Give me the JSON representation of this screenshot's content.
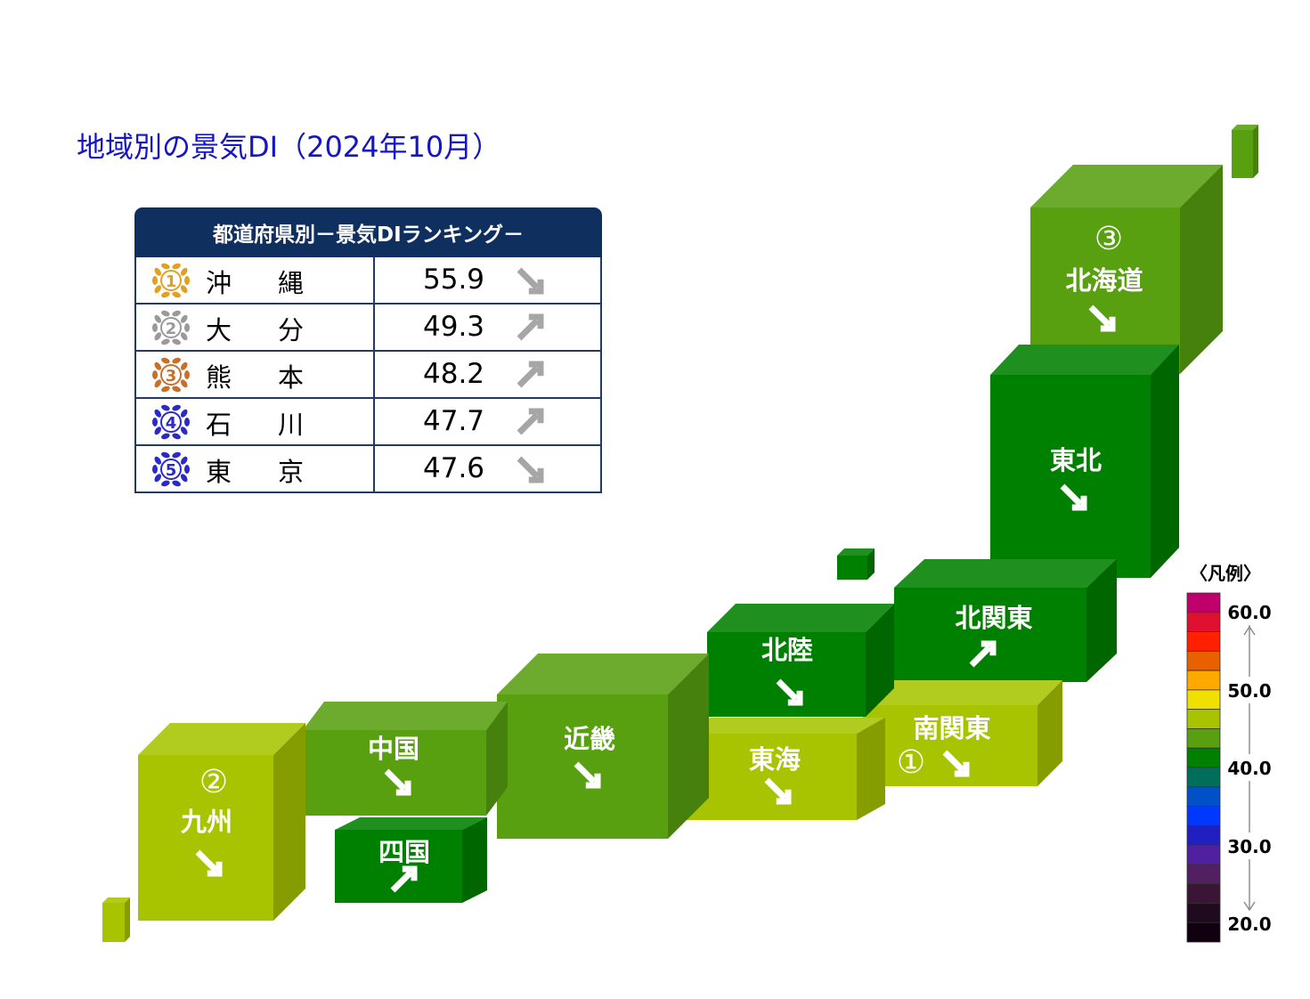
{
  "title": "地域別の景気DI（2024年10月）",
  "ranking": {
    "header": "都道府県別－景気DIランキング－",
    "rows": [
      {
        "rank": "1",
        "name": "沖縄",
        "value": "55.9",
        "trend": "down",
        "medal_color": "#e0a020"
      },
      {
        "rank": "2",
        "name": "大分",
        "value": "49.3",
        "trend": "up",
        "medal_color": "#9a9a9a"
      },
      {
        "rank": "3",
        "name": "熊本",
        "value": "48.2",
        "trend": "up",
        "medal_color": "#c8702a"
      },
      {
        "rank": "4",
        "name": "石川",
        "value": "47.7",
        "trend": "up",
        "medal_color": "#2a2ac8"
      },
      {
        "rank": "5",
        "name": "東京",
        "value": "47.6",
        "trend": "down",
        "medal_color": "#2a2ac8"
      }
    ]
  },
  "chart_data": {
    "type": "heatmap",
    "title": "地域別の景気DI（2024年10月）",
    "regions": [
      {
        "id": "hokkaido",
        "name": "北海道",
        "rank_mark": "③",
        "trend": "down",
        "color": "#58a010"
      },
      {
        "id": "tohoku",
        "name": "東北",
        "rank_mark": "",
        "trend": "down",
        "color": "#008000"
      },
      {
        "id": "kitakanto",
        "name": "北関東",
        "rank_mark": "",
        "trend": "up",
        "color": "#008000"
      },
      {
        "id": "minamikanto",
        "name": "南関東",
        "rank_mark": "①",
        "trend": "down",
        "color": "#a8c400"
      },
      {
        "id": "hokuriku",
        "name": "北陸",
        "rank_mark": "",
        "trend": "down",
        "color": "#008000"
      },
      {
        "id": "tokai",
        "name": "東海",
        "rank_mark": "",
        "trend": "down",
        "color": "#a8c400"
      },
      {
        "id": "kinki",
        "name": "近畿",
        "rank_mark": "",
        "trend": "down",
        "color": "#58a010"
      },
      {
        "id": "chugoku",
        "name": "中国",
        "rank_mark": "",
        "trend": "down",
        "color": "#58a010"
      },
      {
        "id": "shikoku",
        "name": "四国",
        "rank_mark": "",
        "trend": "up",
        "color": "#008000"
      },
      {
        "id": "kyushu",
        "name": "九州",
        "rank_mark": "②",
        "trend": "down",
        "color": "#a8c400"
      }
    ],
    "legend": {
      "title": "〈凡例〉",
      "ticks": [
        "60.0",
        "50.0",
        "40.0",
        "30.0",
        "20.0"
      ],
      "scale_colors": [
        "#c0006a",
        "#e01030",
        "#ff2000",
        "#e86000",
        "#ffa800",
        "#f0e000",
        "#a8c400",
        "#58a010",
        "#008000",
        "#006e5a",
        "#0050c8",
        "#0038ff",
        "#2020c0",
        "#5020a0",
        "#502060",
        "#3c1438",
        "#200a20",
        "#100010"
      ]
    }
  }
}
